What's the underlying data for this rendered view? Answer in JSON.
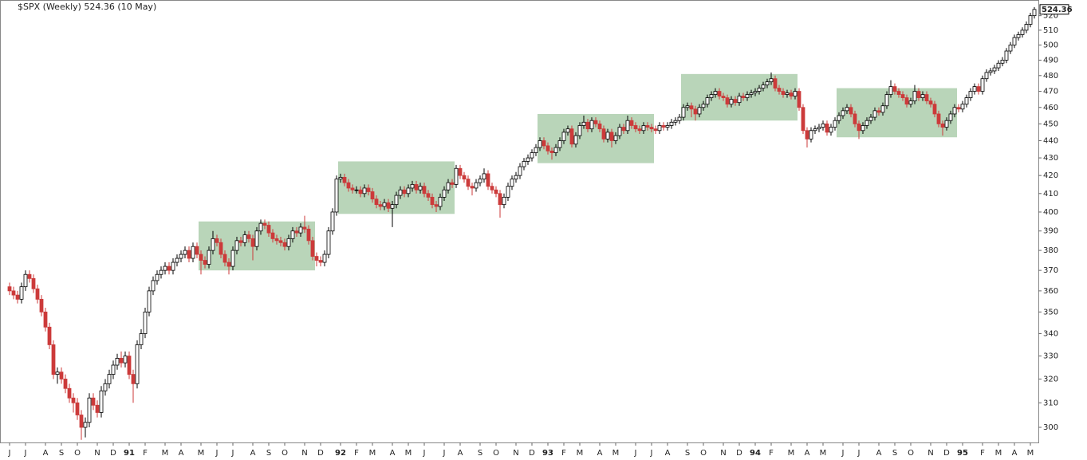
{
  "chart_data": {
    "type": "candlestick",
    "title": "$SPX (Weekly) 524.36 (10 May)",
    "log_scale": true,
    "up_color": "#ffffff",
    "down_color": "#cc3a3a",
    "outline_color": "#000000",
    "zone_color": "#a8cba8",
    "ylim": [
      294,
      531
    ],
    "yticks": [
      300,
      310,
      320,
      330,
      340,
      350,
      360,
      370,
      380,
      390,
      400,
      410,
      420,
      430,
      440,
      450,
      460,
      470,
      480,
      490,
      500,
      510,
      520
    ],
    "categories": [
      "J",
      null,
      null,
      null,
      "J",
      null,
      null,
      null,
      null,
      "A",
      null,
      null,
      null,
      "S",
      null,
      null,
      null,
      "O",
      null,
      null,
      null,
      null,
      "N",
      null,
      null,
      null,
      "D",
      null,
      null,
      null,
      "91",
      null,
      null,
      null,
      "F",
      null,
      null,
      null,
      null,
      "M",
      null,
      null,
      null,
      "A",
      null,
      null,
      null,
      null,
      "M",
      null,
      null,
      null,
      "J",
      null,
      null,
      null,
      "J",
      null,
      null,
      null,
      null,
      "A",
      null,
      null,
      null,
      "S",
      null,
      null,
      null,
      "O",
      null,
      null,
      null,
      null,
      "N",
      null,
      null,
      null,
      "D",
      null,
      null,
      null,
      null,
      "92",
      null,
      null,
      null,
      "F",
      null,
      null,
      null,
      "M",
      null,
      null,
      null,
      null,
      "A",
      null,
      null,
      null,
      "M",
      null,
      null,
      null,
      "J",
      null,
      null,
      null,
      null,
      "J",
      null,
      null,
      null,
      "A",
      null,
      null,
      null,
      null,
      "S",
      null,
      null,
      null,
      "O",
      null,
      null,
      null,
      null,
      "N",
      null,
      null,
      null,
      "D",
      null,
      null,
      null,
      "93",
      null,
      null,
      null,
      "F",
      null,
      null,
      null,
      "M",
      null,
      null,
      null,
      null,
      "A",
      null,
      null,
      null,
      "M",
      null,
      null,
      null,
      null,
      "J",
      null,
      null,
      null,
      "J",
      null,
      null,
      null,
      "A",
      null,
      null,
      null,
      null,
      "S",
      null,
      null,
      null,
      "O",
      null,
      null,
      null,
      null,
      "N",
      null,
      null,
      null,
      "D",
      null,
      null,
      null,
      "94",
      null,
      null,
      null,
      "F",
      null,
      null,
      null,
      null,
      "M",
      null,
      null,
      null,
      "A",
      null,
      null,
      null,
      "M",
      null,
      null,
      null,
      null,
      "J",
      null,
      null,
      null,
      "J",
      null,
      null,
      null,
      null,
      "A",
      null,
      null,
      null,
      "S",
      null,
      null,
      null,
      "O",
      null,
      null,
      null,
      null,
      "N",
      null,
      null,
      null,
      "D",
      null,
      null,
      null,
      "95",
      null,
      null,
      null,
      null,
      "F",
      null,
      null,
      null,
      "M",
      null,
      null,
      null,
      "A",
      null,
      null,
      null,
      "M",
      null
    ],
    "open": [
      362,
      360,
      358,
      356,
      362,
      368,
      366,
      361,
      356,
      350,
      343,
      335,
      322,
      323,
      320,
      316,
      312,
      310,
      305,
      300,
      302,
      312,
      309,
      306,
      315,
      318,
      322,
      326,
      329,
      327,
      330,
      322,
      318,
      335,
      340,
      350,
      360,
      365,
      368,
      370,
      372,
      370,
      374,
      376,
      378,
      380,
      376,
      382,
      378,
      375,
      373,
      380,
      386,
      384,
      378,
      374,
      372,
      380,
      385,
      384,
      388,
      386,
      382,
      390,
      394,
      393,
      389,
      386,
      385,
      384,
      382,
      386,
      390,
      389,
      392,
      391,
      385,
      377,
      375,
      374,
      378,
      390,
      400,
      418,
      419,
      416,
      413,
      412,
      412,
      410,
      413,
      411,
      407,
      404,
      403,
      405,
      402,
      404,
      409,
      412,
      410,
      413,
      415,
      412,
      414,
      410,
      408,
      404,
      403,
      408,
      412,
      416,
      415,
      424,
      420,
      418,
      414,
      413,
      416,
      418,
      421,
      414,
      412,
      410,
      404,
      408,
      414,
      418,
      420,
      425,
      428,
      430,
      433,
      436,
      440,
      437,
      434,
      433,
      436,
      440,
      445,
      447,
      438,
      443,
      449,
      451,
      447,
      452,
      450,
      447,
      441,
      445,
      440,
      443,
      448,
      446,
      452,
      449,
      447,
      446,
      449,
      448,
      447,
      446,
      449,
      448,
      449,
      451,
      452,
      454,
      460,
      461,
      459,
      456,
      460,
      462,
      466,
      468,
      470,
      467,
      466,
      462,
      465,
      463,
      467,
      466,
      468,
      469,
      470,
      472,
      474,
      476,
      478,
      472,
      470,
      468,
      469,
      467,
      470,
      460,
      446,
      441,
      446,
      447,
      448,
      450,
      445,
      448,
      452,
      455,
      458,
      460,
      456,
      450,
      446,
      449,
      452,
      454,
      458,
      457,
      461,
      468,
      473,
      470,
      468,
      466,
      462,
      464,
      470,
      466,
      468,
      464,
      462,
      456,
      450,
      448,
      452,
      456,
      460,
      459,
      462,
      466,
      470,
      473,
      470,
      478,
      482,
      483,
      485,
      488,
      490,
      496,
      500,
      505,
      507,
      510,
      514,
      520
    ],
    "high": [
      364,
      362,
      360,
      364,
      370,
      370,
      368,
      363,
      358,
      352,
      345,
      337,
      325,
      325,
      322,
      318,
      314,
      312,
      307,
      304,
      314,
      314,
      311,
      317,
      320,
      324,
      328,
      331,
      332,
      332,
      332,
      324,
      337,
      342,
      352,
      362,
      367,
      370,
      372,
      374,
      374,
      376,
      378,
      380,
      382,
      382,
      384,
      384,
      380,
      377,
      382,
      390,
      388,
      386,
      380,
      376,
      382,
      387,
      387,
      390,
      390,
      388,
      392,
      396,
      396,
      395,
      391,
      388,
      387,
      386,
      388,
      392,
      392,
      394,
      398,
      393,
      387,
      379,
      377,
      380,
      392,
      402,
      420,
      421,
      421,
      418,
      415,
      414,
      414,
      415,
      415,
      413,
      409,
      406,
      407,
      407,
      406,
      411,
      414,
      414,
      415,
      417,
      417,
      416,
      416,
      412,
      410,
      406,
      410,
      414,
      418,
      418,
      426,
      426,
      422,
      420,
      416,
      418,
      420,
      424,
      423,
      416,
      414,
      412,
      410,
      416,
      420,
      422,
      427,
      430,
      432,
      435,
      438,
      442,
      442,
      439,
      436,
      438,
      442,
      447,
      449,
      449,
      445,
      451,
      455,
      453,
      454,
      454,
      452,
      449,
      447,
      447,
      445,
      450,
      450,
      455,
      454,
      451,
      449,
      451,
      451,
      450,
      449,
      451,
      451,
      451,
      453,
      454,
      456,
      462,
      463,
      463,
      461,
      462,
      464,
      468,
      470,
      472,
      472,
      469,
      468,
      467,
      467,
      469,
      469,
      470,
      471,
      472,
      474,
      476,
      478,
      482,
      480,
      474,
      472,
      471,
      471,
      472,
      472,
      462,
      448,
      448,
      449,
      450,
      452,
      452,
      450,
      454,
      457,
      460,
      462,
      462,
      458,
      452,
      451,
      454,
      456,
      460,
      460,
      463,
      470,
      477,
      475,
      472,
      470,
      468,
      466,
      474,
      472,
      470,
      470,
      466,
      464,
      458,
      452,
      454,
      458,
      462,
      462,
      464,
      468,
      472,
      475,
      475,
      480,
      484,
      485,
      487,
      490,
      492,
      498,
      502,
      507,
      509,
      512,
      516,
      522,
      526
    ],
    "low": [
      358,
      356,
      354,
      354,
      360,
      364,
      359,
      354,
      348,
      341,
      333,
      320,
      318,
      318,
      314,
      310,
      306,
      303,
      295,
      296,
      300,
      307,
      304,
      304,
      313,
      316,
      320,
      324,
      325,
      325,
      320,
      310,
      316,
      333,
      338,
      348,
      358,
      363,
      366,
      368,
      368,
      368,
      372,
      374,
      376,
      374,
      374,
      376,
      368,
      371,
      371,
      378,
      382,
      376,
      372,
      368,
      370,
      378,
      382,
      382,
      384,
      375,
      380,
      388,
      391,
      387,
      384,
      383,
      382,
      380,
      380,
      384,
      387,
      387,
      389,
      383,
      375,
      372,
      372,
      372,
      376,
      388,
      398,
      416,
      414,
      411,
      410,
      410,
      408,
      408,
      409,
      405,
      402,
      401,
      401,
      400,
      392,
      402,
      407,
      408,
      408,
      411,
      410,
      410,
      408,
      406,
      402,
      400,
      401,
      406,
      410,
      413,
      413,
      418,
      416,
      412,
      409,
      411,
      414,
      416,
      412,
      410,
      408,
      397,
      402,
      406,
      412,
      416,
      418,
      423,
      426,
      428,
      431,
      434,
      435,
      432,
      429,
      431,
      434,
      438,
      443,
      436,
      436,
      441,
      447,
      445,
      445,
      448,
      445,
      439,
      439,
      436,
      438,
      441,
      444,
      444,
      447,
      445,
      444,
      444,
      446,
      445,
      444,
      444,
      446,
      446,
      447,
      449,
      450,
      452,
      458,
      454,
      452,
      454,
      458,
      460,
      464,
      466,
      465,
      464,
      460,
      460,
      461,
      461,
      464,
      464,
      466,
      467,
      468,
      470,
      472,
      474,
      470,
      468,
      466,
      466,
      465,
      465,
      458,
      444,
      436,
      439,
      444,
      445,
      446,
      443,
      443,
      446,
      450,
      453,
      456,
      454,
      448,
      441,
      444,
      447,
      450,
      452,
      455,
      455,
      459,
      466,
      468,
      466,
      464,
      460,
      460,
      462,
      464,
      464,
      462,
      460,
      454,
      448,
      443,
      446,
      450,
      454,
      457,
      457,
      460,
      464,
      468,
      468,
      468,
      476,
      480,
      481,
      483,
      486,
      488,
      494,
      498,
      503,
      505,
      508,
      512,
      518
    ],
    "close": [
      360,
      358,
      356,
      362,
      368,
      366,
      361,
      356,
      350,
      343,
      335,
      322,
      323,
      320,
      316,
      312,
      310,
      305,
      300,
      302,
      312,
      309,
      306,
      315,
      318,
      322,
      326,
      329,
      327,
      330,
      322,
      318,
      335,
      340,
      350,
      360,
      365,
      368,
      370,
      372,
      370,
      374,
      376,
      378,
      380,
      376,
      382,
      378,
      375,
      373,
      380,
      386,
      384,
      378,
      374,
      372,
      380,
      385,
      384,
      388,
      386,
      382,
      390,
      394,
      393,
      389,
      386,
      385,
      384,
      382,
      386,
      390,
      389,
      392,
      391,
      385,
      377,
      375,
      374,
      378,
      390,
      400,
      418,
      419,
      416,
      413,
      412,
      412,
      410,
      413,
      411,
      407,
      404,
      403,
      405,
      402,
      404,
      409,
      412,
      410,
      413,
      415,
      412,
      414,
      410,
      408,
      404,
      403,
      408,
      412,
      416,
      415,
      424,
      420,
      418,
      414,
      413,
      416,
      418,
      421,
      414,
      412,
      410,
      404,
      408,
      414,
      418,
      420,
      425,
      428,
      430,
      433,
      436,
      440,
      437,
      434,
      433,
      436,
      440,
      445,
      447,
      438,
      443,
      449,
      451,
      447,
      452,
      450,
      447,
      441,
      445,
      440,
      443,
      448,
      446,
      452,
      449,
      447,
      446,
      449,
      448,
      447,
      446,
      449,
      448,
      449,
      451,
      452,
      454,
      460,
      461,
      459,
      456,
      460,
      462,
      466,
      468,
      470,
      467,
      466,
      462,
      465,
      463,
      467,
      466,
      468,
      469,
      470,
      472,
      474,
      476,
      478,
      472,
      470,
      468,
      469,
      467,
      470,
      460,
      446,
      441,
      446,
      447,
      448,
      450,
      445,
      448,
      452,
      455,
      458,
      460,
      456,
      450,
      446,
      449,
      452,
      454,
      458,
      457,
      461,
      468,
      473,
      470,
      468,
      466,
      462,
      464,
      470,
      466,
      468,
      464,
      462,
      456,
      450,
      448,
      452,
      456,
      460,
      459,
      462,
      466,
      470,
      473,
      470,
      478,
      482,
      483,
      485,
      488,
      490,
      496,
      500,
      505,
      507,
      510,
      514,
      520,
      524.36
    ],
    "zones": [
      {
        "start": 48,
        "end": 76,
        "low": 370,
        "high": 395
      },
      {
        "start": 83,
        "end": 111,
        "low": 399,
        "high": 428
      },
      {
        "start": 133,
        "end": 161,
        "low": 427,
        "high": 456
      },
      {
        "start": 169,
        "end": 197,
        "low": 452,
        "high": 481
      },
      {
        "start": 208,
        "end": 237,
        "low": 442,
        "high": 472
      }
    ]
  }
}
